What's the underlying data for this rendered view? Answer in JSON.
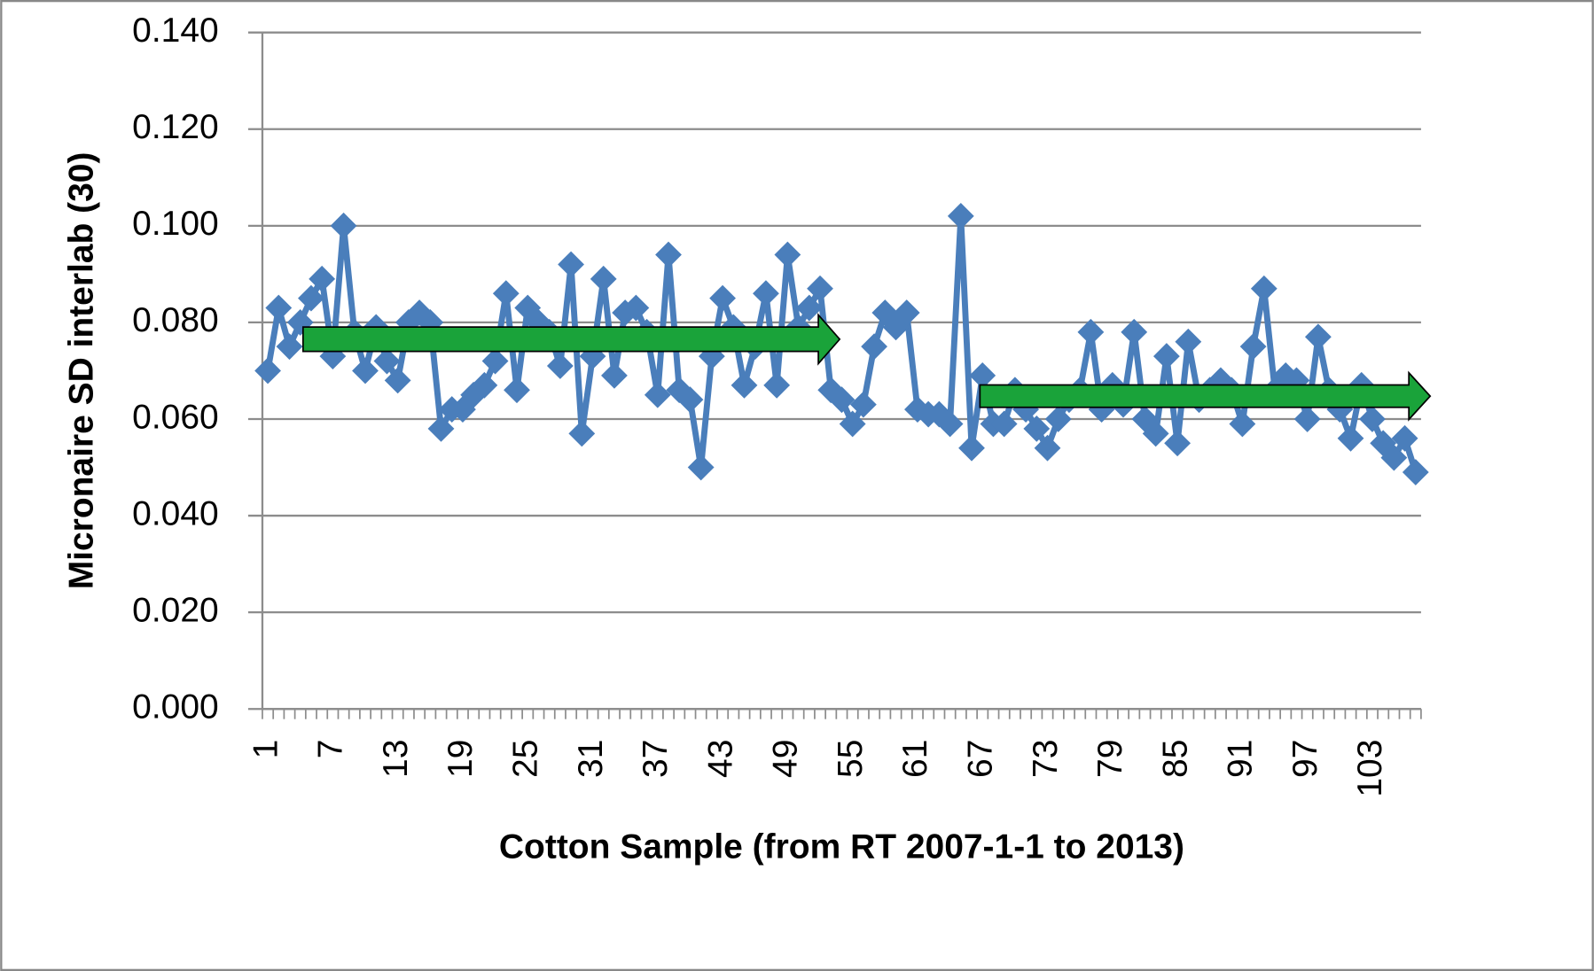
{
  "chart_data": {
    "type": "line",
    "x_label": "Cotton Sample  (from RT 2007-1-1 to 2013)",
    "y_label": "Micronaire  SD interlab (30)",
    "categories": [
      "1",
      null,
      null,
      null,
      null,
      null,
      "7",
      null,
      null,
      null,
      null,
      null,
      "13",
      null,
      null,
      null,
      null,
      null,
      "19",
      null,
      null,
      null,
      null,
      null,
      "25",
      null,
      null,
      null,
      null,
      null,
      "31",
      null,
      null,
      null,
      null,
      null,
      "37",
      null,
      null,
      null,
      null,
      null,
      "43",
      null,
      null,
      null,
      null,
      null,
      "49",
      null,
      null,
      null,
      null,
      null,
      "55",
      null,
      null,
      null,
      null,
      null,
      "61",
      null,
      null,
      null,
      null,
      null,
      "67",
      null,
      null,
      null,
      null,
      null,
      "73",
      null,
      null,
      null,
      null,
      null,
      "79",
      null,
      null,
      null,
      null,
      null,
      "85",
      null,
      null,
      null,
      null,
      null,
      "91",
      null,
      null,
      null,
      null,
      null,
      "97",
      null,
      null,
      null,
      null,
      null,
      "103",
      null,
      null,
      null,
      null
    ],
    "series": [
      {
        "name": "Micronaire SD",
        "color": "#4a7ebb",
        "values": [
          0.07,
          0.083,
          0.075,
          0.08,
          0.085,
          0.089,
          0.073,
          0.1,
          0.078,
          0.07,
          0.079,
          0.072,
          0.068,
          0.08,
          0.082,
          0.08,
          0.058,
          0.062,
          0.062,
          0.065,
          0.067,
          0.072,
          0.086,
          0.066,
          0.083,
          0.08,
          0.078,
          0.071,
          0.092,
          0.057,
          0.073,
          0.089,
          0.069,
          0.082,
          0.083,
          0.078,
          0.065,
          0.094,
          0.066,
          0.064,
          0.05,
          0.073,
          0.085,
          0.079,
          0.067,
          0.075,
          0.086,
          0.067,
          0.094,
          0.079,
          0.083,
          0.087,
          0.066,
          0.064,
          0.059,
          0.063,
          0.075,
          0.082,
          0.079,
          0.082,
          0.062,
          0.061,
          0.061,
          0.059,
          0.102,
          0.054,
          0.069,
          0.059,
          0.059,
          0.066,
          0.062,
          0.058,
          0.054,
          0.06,
          0.064,
          0.066,
          0.078,
          0.062,
          0.067,
          0.063,
          0.078,
          0.06,
          0.057,
          0.073,
          0.055,
          0.076,
          0.064,
          0.066,
          0.068,
          0.066,
          0.059,
          0.075,
          0.087,
          0.066,
          0.069,
          0.068,
          0.06,
          0.077,
          0.066,
          0.062,
          0.056,
          0.067,
          0.06,
          0.055,
          0.052,
          0.056,
          0.049
        ]
      }
    ],
    "ylim": [
      0,
      0.14
    ],
    "yticks": [
      {
        "value": 0,
        "label": "0.000"
      },
      {
        "value": 0.02,
        "label": "0.020"
      },
      {
        "value": 0.04,
        "label": "0.040"
      },
      {
        "value": 0.06,
        "label": "0.060"
      },
      {
        "value": 0.08,
        "label": "0.080"
      },
      {
        "value": 0.1,
        "label": "0.100"
      },
      {
        "value": 0.12,
        "label": "0.120"
      },
      {
        "value": 0.14,
        "label": "0.140"
      }
    ],
    "grid": true
  }
}
